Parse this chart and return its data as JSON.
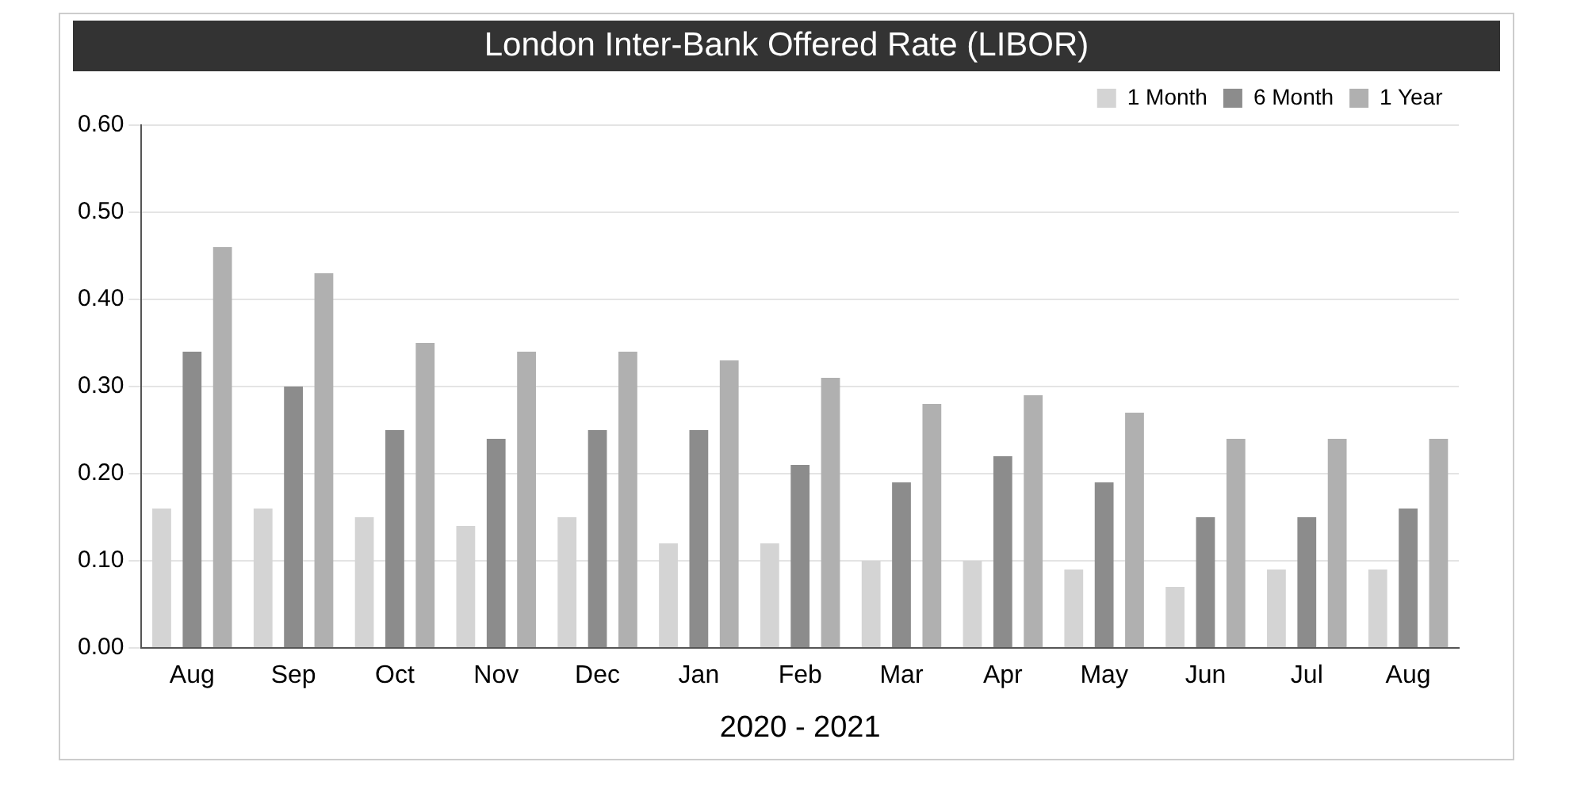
{
  "chart_data": {
    "type": "bar",
    "title": "London Inter-Bank Offered Rate (LIBOR)",
    "xlabel": "2020 - 2021",
    "categories": [
      "Aug",
      "Sep",
      "Oct",
      "Nov",
      "Dec",
      "Jan",
      "Feb",
      "Mar",
      "Apr",
      "May",
      "Jun",
      "Jul",
      "Aug"
    ],
    "series": [
      {
        "name": "1 Month",
        "color": "#d4d4d4",
        "values": [
          0.16,
          0.16,
          0.15,
          0.14,
          0.15,
          0.12,
          0.12,
          0.1,
          0.1,
          0.09,
          0.07,
          0.09,
          0.09
        ]
      },
      {
        "name": "6 Month",
        "color": "#8c8c8c",
        "values": [
          0.34,
          0.3,
          0.25,
          0.24,
          0.25,
          0.25,
          0.21,
          0.19,
          0.22,
          0.19,
          0.15,
          0.15,
          0.16
        ]
      },
      {
        "name": "1 Year",
        "color": "#b0b0b0",
        "values": [
          0.46,
          0.43,
          0.35,
          0.34,
          0.34,
          0.33,
          0.31,
          0.28,
          0.29,
          0.27,
          0.24,
          0.24,
          0.24
        ]
      }
    ],
    "ylim": [
      0,
      0.6
    ],
    "yticks": [
      {
        "value": 0,
        "label": "0.00"
      },
      {
        "value": 0.1,
        "label": "0.10"
      },
      {
        "value": 0.2,
        "label": "0.20"
      },
      {
        "value": 0.3,
        "label": "0.30"
      },
      {
        "value": 0.4,
        "label": "0.40"
      },
      {
        "value": 0.5,
        "label": "0.50"
      },
      {
        "value": 0.6,
        "label": "0.60"
      }
    ],
    "grid": "y",
    "legend": "top right"
  }
}
